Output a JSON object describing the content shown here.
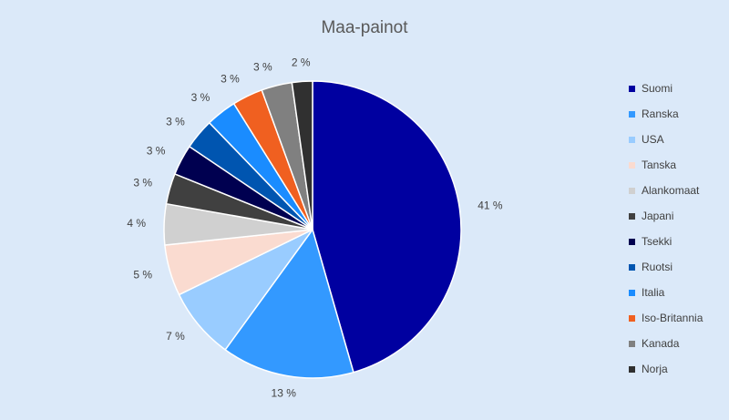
{
  "chart_data": {
    "type": "pie",
    "title": "Maa-painot",
    "categories": [
      "Suomi",
      "Ranska",
      "USA",
      "Tanska",
      "Alankomaat",
      "Japani",
      "Tsekki",
      "Ruotsi",
      "Italia",
      "Iso-Britannia",
      "Kanada",
      "Norja"
    ],
    "values": [
      41,
      13,
      7,
      5,
      4,
      3,
      3,
      3,
      3,
      3,
      3,
      2
    ],
    "value_labels": [
      "41 %",
      "13 %",
      "7 %",
      "5 %",
      "4 %",
      "3 %",
      "3 %",
      "3 %",
      "3 %",
      "3 %",
      "3 %",
      "2 %"
    ],
    "colors": [
      "#0000a0",
      "#3399ff",
      "#99ccff",
      "#fadbd0",
      "#d0d0d0",
      "#404040",
      "#000050",
      "#0055b0",
      "#1a8cff",
      "#f06020",
      "#808080",
      "#303030"
    ],
    "legend": "right"
  }
}
